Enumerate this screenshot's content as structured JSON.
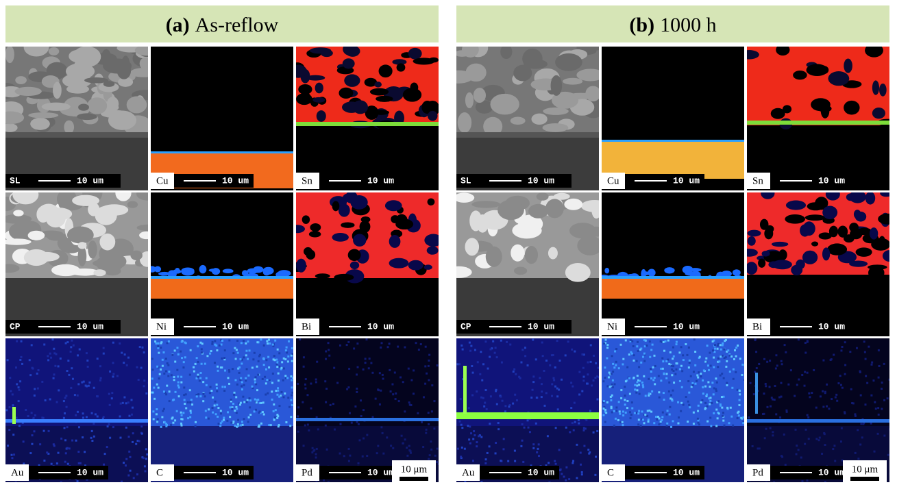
{
  "panels": [
    {
      "label": "(a)",
      "title": "As-reflow",
      "scale_bar": "10 μm",
      "tiles": [
        {
          "label": "SL",
          "scale": "10 um"
        },
        {
          "label": "Cu",
          "scale": "10 um"
        },
        {
          "label": "Sn",
          "scale": "10 um"
        },
        {
          "label": "CP",
          "scale": "10 um"
        },
        {
          "label": "Ni",
          "scale": "10 um"
        },
        {
          "label": "Bi",
          "scale": "10 um"
        },
        {
          "label": "Au",
          "scale": "10 um"
        },
        {
          "label": "C",
          "scale": "10 um"
        },
        {
          "label": "Pd",
          "scale": "10 um"
        }
      ]
    },
    {
      "label": "(b)",
      "title": "1000 h",
      "scale_bar": "10 μm",
      "tiles": [
        {
          "label": "SL",
          "scale": "10 um"
        },
        {
          "label": "Cu",
          "scale": "10 um"
        },
        {
          "label": "Sn",
          "scale": "10 um"
        },
        {
          "label": "CP",
          "scale": "10 um"
        },
        {
          "label": "Ni",
          "scale": "10 um"
        },
        {
          "label": "Bi",
          "scale": "10 um"
        },
        {
          "label": "Au",
          "scale": "10 um"
        },
        {
          "label": "C",
          "scale": "10 um"
        },
        {
          "label": "Pd",
          "scale": "10 um"
        }
      ]
    }
  ]
}
